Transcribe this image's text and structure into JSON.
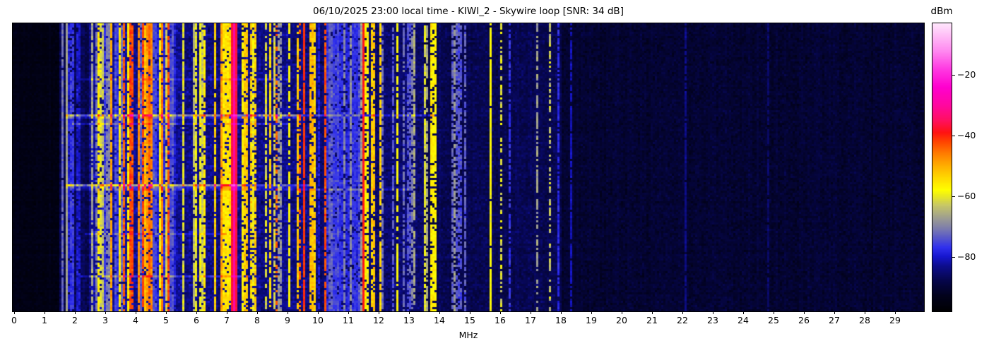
{
  "title": "06/10/2025 23:00 local time - KIWI_2 - Skywire loop [SNR: 34 dB]",
  "chart_data": {
    "type": "heatmap",
    "title": "06/10/2025 23:00 local time - KIWI_2 - Skywire loop [SNR: 34 dB]",
    "xlabel": "MHz",
    "x_range_mhz": [
      0,
      30
    ],
    "x_ticks": [
      "0",
      "1",
      "2",
      "3",
      "4",
      "5",
      "6",
      "7",
      "8",
      "9",
      "10",
      "11",
      "12",
      "13",
      "14",
      "15",
      "16",
      "17",
      "18",
      "19",
      "20",
      "21",
      "22",
      "23",
      "24",
      "25",
      "26",
      "27",
      "28",
      "29"
    ],
    "grid": false,
    "colorbar": {
      "label": "dBm",
      "range_dbm": [
        -98,
        -3
      ],
      "ticks": [
        {
          "value": -20,
          "label": "−20"
        },
        {
          "value": -40,
          "label": "−40"
        },
        {
          "value": -60,
          "label": "−60"
        },
        {
          "value": -80,
          "label": "−80"
        }
      ]
    },
    "colormap_stops": [
      [
        -98,
        "#000003"
      ],
      [
        -93,
        "#02021c"
      ],
      [
        -88,
        "#06064a"
      ],
      [
        -83,
        "#0d0d8f"
      ],
      [
        -80,
        "#1717cf"
      ],
      [
        -77,
        "#3030ee"
      ],
      [
        -74,
        "#5555cc"
      ],
      [
        -71,
        "#7a7ab0"
      ],
      [
        -67,
        "#a0a08e"
      ],
      [
        -63,
        "#c8c866"
      ],
      [
        -60,
        "#eaea20"
      ],
      [
        -58,
        "#ffff00"
      ],
      [
        -54,
        "#ffd900"
      ],
      [
        -50,
        "#ffae00"
      ],
      [
        -46,
        "#ff7d00"
      ],
      [
        -42,
        "#ff4300"
      ],
      [
        -39,
        "#ff1212"
      ],
      [
        -35,
        "#ff1060"
      ],
      [
        -30,
        "#ff08a0"
      ],
      [
        -24,
        "#ff00cf"
      ],
      [
        -18,
        "#ff3ae2"
      ],
      [
        -12,
        "#ff8af0"
      ],
      [
        -6,
        "#ffc8f8"
      ],
      [
        -3,
        "#ffe6fc"
      ]
    ],
    "noise_floor_regions": [
      {
        "from_mhz": 0.0,
        "to_mhz": 1.52,
        "mean_dbm": -94.5,
        "sd": 2.0
      },
      {
        "from_mhz": 1.52,
        "to_mhz": 2.5,
        "mean_dbm": -87.5,
        "sd": 3.0
      },
      {
        "from_mhz": 2.5,
        "to_mhz": 5.5,
        "mean_dbm": -83.0,
        "sd": 4.0
      },
      {
        "from_mhz": 5.5,
        "to_mhz": 10.0,
        "mean_dbm": -84.0,
        "sd": 4.0
      },
      {
        "from_mhz": 10.0,
        "to_mhz": 13.5,
        "mean_dbm": -85.5,
        "sd": 3.5
      },
      {
        "from_mhz": 13.5,
        "to_mhz": 18.0,
        "mean_dbm": -87.5,
        "sd": 3.0
      },
      {
        "from_mhz": 18.0,
        "to_mhz": 30.0,
        "mean_dbm": -90.5,
        "sd": 2.8
      }
    ],
    "signal_bands": [
      {
        "from_mhz": 1.62,
        "to_mhz": 2.25,
        "count": 9,
        "level_min_dbm": -82,
        "level_max_dbm": -72,
        "duty": 0.9
      },
      {
        "from_mhz": 2.5,
        "to_mhz": 3.15,
        "count": 12,
        "level_min_dbm": -74,
        "level_max_dbm": -55,
        "duty": 0.85
      },
      {
        "from_mhz": 3.15,
        "to_mhz": 5.45,
        "count": 40,
        "level_min_dbm": -66,
        "level_max_dbm": -46,
        "duty": 0.9
      },
      {
        "from_mhz": 3.3,
        "to_mhz": 5.2,
        "count": 7,
        "level_min_dbm": -46,
        "level_max_dbm": -41,
        "duty": 0.85
      },
      {
        "from_mhz": 2.6,
        "to_mhz": 5.4,
        "count": 18,
        "level_min_dbm": -80,
        "level_max_dbm": -72,
        "duty": 0.9
      },
      {
        "from_mhz": 5.5,
        "to_mhz": 6.45,
        "count": 13,
        "level_min_dbm": -67,
        "level_max_dbm": -52,
        "duty": 0.85
      },
      {
        "from_mhz": 6.55,
        "to_mhz": 7.12,
        "count": 8,
        "level_min_dbm": -56,
        "level_max_dbm": -44,
        "duty": 0.9
      },
      {
        "from_mhz": 7.38,
        "to_mhz": 8.05,
        "count": 9,
        "level_min_dbm": -64,
        "level_max_dbm": -50,
        "duty": 0.8
      },
      {
        "from_mhz": 8.2,
        "to_mhz": 9.1,
        "count": 9,
        "level_min_dbm": -70,
        "level_max_dbm": -54,
        "duty": 0.75
      },
      {
        "from_mhz": 9.3,
        "to_mhz": 10.05,
        "count": 10,
        "level_min_dbm": -62,
        "level_max_dbm": -48,
        "duty": 0.85
      },
      {
        "from_mhz": 10.05,
        "to_mhz": 11.45,
        "count": 12,
        "level_min_dbm": -80,
        "level_max_dbm": -67,
        "duty": 0.8
      },
      {
        "from_mhz": 10.3,
        "to_mhz": 11.45,
        "count": 9,
        "level_min_dbm": -79,
        "level_max_dbm": -73,
        "duty": 0.9,
        "w_min": 0.08,
        "w_max": 0.18
      },
      {
        "from_mhz": 11.6,
        "to_mhz": 12.05,
        "count": 6,
        "level_min_dbm": -62,
        "level_max_dbm": -52,
        "duty": 0.8
      },
      {
        "from_mhz": 12.1,
        "to_mhz": 13.4,
        "count": 7,
        "level_min_dbm": -78,
        "level_max_dbm": -65,
        "duty": 0.7
      },
      {
        "from_mhz": 13.5,
        "to_mhz": 14.0,
        "count": 5,
        "level_min_dbm": -64,
        "level_max_dbm": -55,
        "duty": 0.8
      },
      {
        "from_mhz": 14.2,
        "to_mhz": 14.95,
        "count": 6,
        "level_min_dbm": -80,
        "level_max_dbm": -71,
        "duty": 0.7
      }
    ],
    "carriers": [
      {
        "freq_mhz": 1.74,
        "width_mhz": 0.04,
        "level_dbm": -67,
        "sd": 2,
        "duty": 1.0
      },
      {
        "freq_mhz": 8.62,
        "width_mhz": 0.04,
        "level_dbm": -44,
        "sd": 3,
        "duty": 0.35
      },
      {
        "freq_mhz": 9.4,
        "width_mhz": 0.04,
        "level_dbm": -44,
        "sd": 3,
        "duty": 0.4
      },
      {
        "freq_mhz": 12.62,
        "width_mhz": 0.04,
        "level_dbm": -58,
        "sd": 3,
        "duty": 0.75
      },
      {
        "freq_mhz": 13.57,
        "width_mhz": 0.04,
        "level_dbm": -66,
        "sd": 3,
        "duty": 0.7
      },
      {
        "freq_mhz": 13.77,
        "width_mhz": 0.05,
        "level_dbm": -57,
        "sd": 3,
        "duty": 0.85
      },
      {
        "freq_mhz": 14.52,
        "width_mhz": 0.04,
        "level_dbm": -68,
        "sd": 3,
        "duty": 0.6
      },
      {
        "freq_mhz": 15.7,
        "width_mhz": 0.05,
        "level_dbm": -58,
        "sd": 2.5,
        "duty": 0.95
      },
      {
        "freq_mhz": 16.05,
        "width_mhz": 0.05,
        "level_dbm": -61,
        "sd": 4,
        "duty": 0.65
      },
      {
        "freq_mhz": 16.3,
        "width_mhz": 0.04,
        "level_dbm": -77,
        "sd": 3,
        "duty": 0.7
      },
      {
        "freq_mhz": 17.2,
        "width_mhz": 0.04,
        "level_dbm": -67,
        "sd": 3,
        "duty": 0.6
      },
      {
        "freq_mhz": 17.62,
        "width_mhz": 0.05,
        "level_dbm": -63,
        "sd": 4,
        "duty": 0.6
      },
      {
        "freq_mhz": 17.95,
        "width_mhz": 0.04,
        "level_dbm": -78,
        "sd": 3,
        "duty": 0.8
      },
      {
        "freq_mhz": 18.35,
        "width_mhz": 0.035,
        "level_dbm": -81,
        "sd": 2,
        "duty": 0.8
      },
      {
        "freq_mhz": 22.1,
        "width_mhz": 0.03,
        "level_dbm": -84,
        "sd": 2,
        "duty": 0.9
      },
      {
        "freq_mhz": 24.8,
        "width_mhz": 0.03,
        "level_dbm": -86,
        "sd": 2,
        "duty": 0.8
      },
      {
        "freq_mhz": 9.58,
        "width_mhz": 0.05,
        "level_dbm": -41,
        "sd": 2,
        "duty": 0.95
      },
      {
        "freq_mhz": 10.23,
        "width_mhz": 0.04,
        "level_dbm": -43,
        "sd": 3,
        "duty": 0.8
      },
      {
        "freq_mhz": 11.52,
        "width_mhz": 0.07,
        "level_dbm": -39,
        "sd": 2,
        "duty": 1.0
      },
      {
        "freq_mhz": 7.25,
        "width_mhz": 0.19,
        "level_dbm": -37,
        "sd": 1.5,
        "duty": 1.0
      },
      {
        "freq_mhz": 7.25,
        "width_mhz": 0.05,
        "level_dbm": -30,
        "sd": 1.5,
        "duty": 1.0
      }
    ],
    "static_crash_rows": [
      {
        "y_frac": 0.315,
        "from_mhz": 1.7,
        "to_mhz": 9.3,
        "boost_db": 14
      },
      {
        "y_frac": 0.315,
        "from_mhz": 9.3,
        "to_mhz": 13.9,
        "boost_db": 7
      },
      {
        "y_frac": 0.345,
        "from_mhz": 1.9,
        "to_mhz": 9.0,
        "boost_db": 6
      },
      {
        "y_frac": 0.19,
        "from_mhz": 2.2,
        "to_mhz": 9.0,
        "boost_db": 5
      },
      {
        "y_frac": 0.562,
        "from_mhz": 1.7,
        "to_mhz": 7.6,
        "boost_db": 17
      },
      {
        "y_frac": 0.562,
        "from_mhz": 7.6,
        "to_mhz": 9.7,
        "boost_db": 9
      },
      {
        "y_frac": 0.578,
        "from_mhz": 2.0,
        "to_mhz": 13.0,
        "boost_db": 5
      },
      {
        "y_frac": 0.735,
        "from_mhz": 2.3,
        "to_mhz": 7.0,
        "boost_db": 5
      },
      {
        "y_frac": 0.88,
        "from_mhz": 2.2,
        "to_mhz": 7.8,
        "boost_db": 7
      }
    ]
  }
}
